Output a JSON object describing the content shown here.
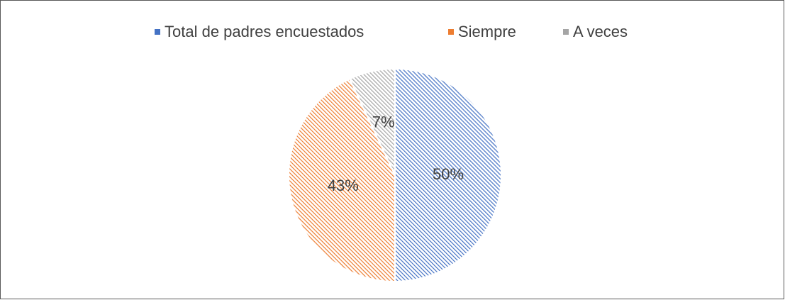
{
  "chart_data": {
    "type": "pie",
    "categories": [
      "Total de padres encuestados",
      "Siempre",
      "A veces"
    ],
    "values": [
      50,
      43,
      7
    ],
    "value_labels": [
      "50%",
      "43%",
      "7%"
    ],
    "colors": [
      "#4472c4",
      "#ed7d31",
      "#a5a5a5"
    ],
    "legend": "top"
  }
}
